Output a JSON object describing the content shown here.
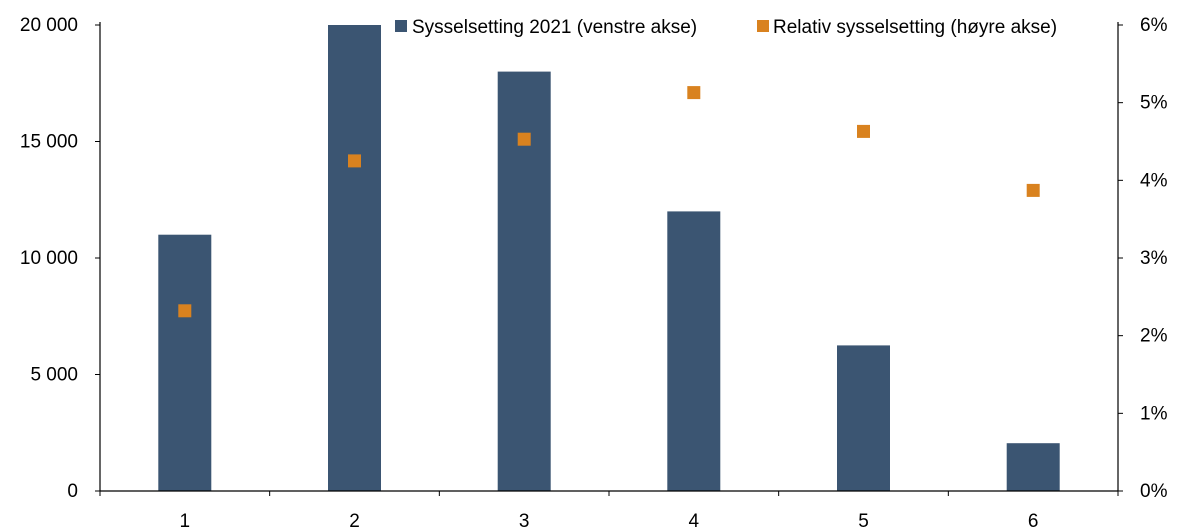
{
  "chart_data": {
    "type": "bar",
    "categories": [
      "1",
      "2",
      "3",
      "4",
      "5",
      "6"
    ],
    "series": [
      {
        "name": "Sysselsetting 2021 (venstre akse)",
        "type": "bar",
        "axis": "left",
        "values": [
          11000,
          20000,
          18000,
          12000,
          6250,
          2050
        ]
      },
      {
        "name": "Relativ sysselsetting (høyre akse)",
        "type": "scatter",
        "axis": "right",
        "values": [
          0.0232,
          0.0425,
          0.0453,
          0.0513,
          0.0463,
          0.0387
        ]
      }
    ],
    "left_axis": {
      "ylim": [
        0,
        20000
      ],
      "ticks": [
        "0",
        "5 000",
        "10 000",
        "15 000",
        "20 000"
      ]
    },
    "right_axis": {
      "ylim": [
        0,
        0.06
      ],
      "ticks": [
        "0%",
        "1%",
        "2%",
        "3%",
        "4%",
        "5%",
        "6%"
      ]
    },
    "legend_position": "top-right",
    "grid": false,
    "colors": {
      "bar": "#3b5572",
      "marker": "#d9821f"
    }
  }
}
